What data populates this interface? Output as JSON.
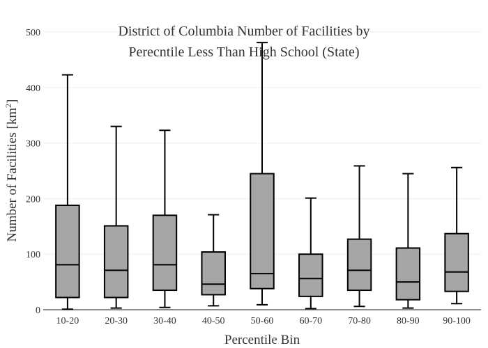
{
  "chart_data": {
    "type": "box",
    "title_line1": "District of Columbia Number of Facilities by",
    "title_line2": "Perecntile Less Than High School (State)",
    "xlabel": "Percentile Bin",
    "ylabel_main": "Number of Facilities  [km",
    "ylabel_sup": "2",
    "ylabel_end": "]",
    "ylim": [
      0,
      500
    ],
    "yticks": [
      0,
      100,
      200,
      300,
      400,
      500
    ],
    "grid": true,
    "categories": [
      "10-20",
      "20-30",
      "30-40",
      "40-50",
      "50-60",
      "60-70",
      "70-80",
      "80-90",
      "90-100"
    ],
    "boxes": [
      {
        "min": 1,
        "q1": 22,
        "median": 81,
        "q3": 188,
        "max": 423
      },
      {
        "min": 3,
        "q1": 22,
        "median": 71,
        "q3": 151,
        "max": 330
      },
      {
        "min": 4,
        "q1": 35,
        "median": 81,
        "q3": 170,
        "max": 323
      },
      {
        "min": 7,
        "q1": 27,
        "median": 46,
        "q3": 104,
        "max": 171
      },
      {
        "min": 9,
        "q1": 38,
        "median": 65,
        "q3": 245,
        "max": 481
      },
      {
        "min": 2,
        "q1": 24,
        "median": 56,
        "q3": 100,
        "max": 201
      },
      {
        "min": 6,
        "q1": 35,
        "median": 71,
        "q3": 127,
        "max": 259
      },
      {
        "min": 3,
        "q1": 18,
        "median": 50,
        "q3": 111,
        "max": 245
      },
      {
        "min": 11,
        "q1": 33,
        "median": 68,
        "q3": 137,
        "max": 256
      }
    ]
  }
}
